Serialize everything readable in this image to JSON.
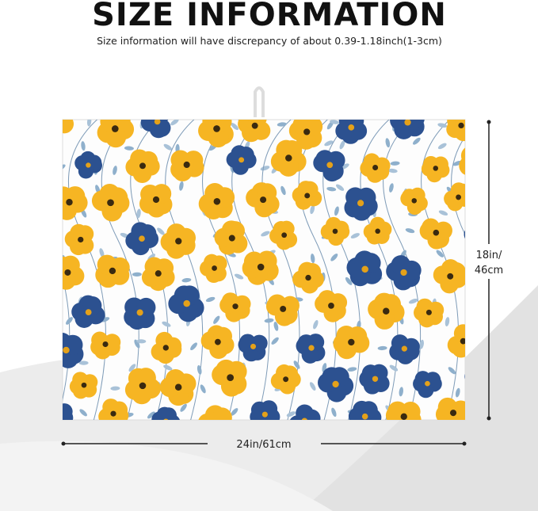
{
  "header": {
    "title": "SIZE INFORMATION",
    "subtitle": "Size information will have discrepancy of about 0.39-1.18inch(1-3cm)"
  },
  "dimensions": {
    "height": [
      "18in/",
      "46cm"
    ],
    "width": "24in/61cm"
  }
}
